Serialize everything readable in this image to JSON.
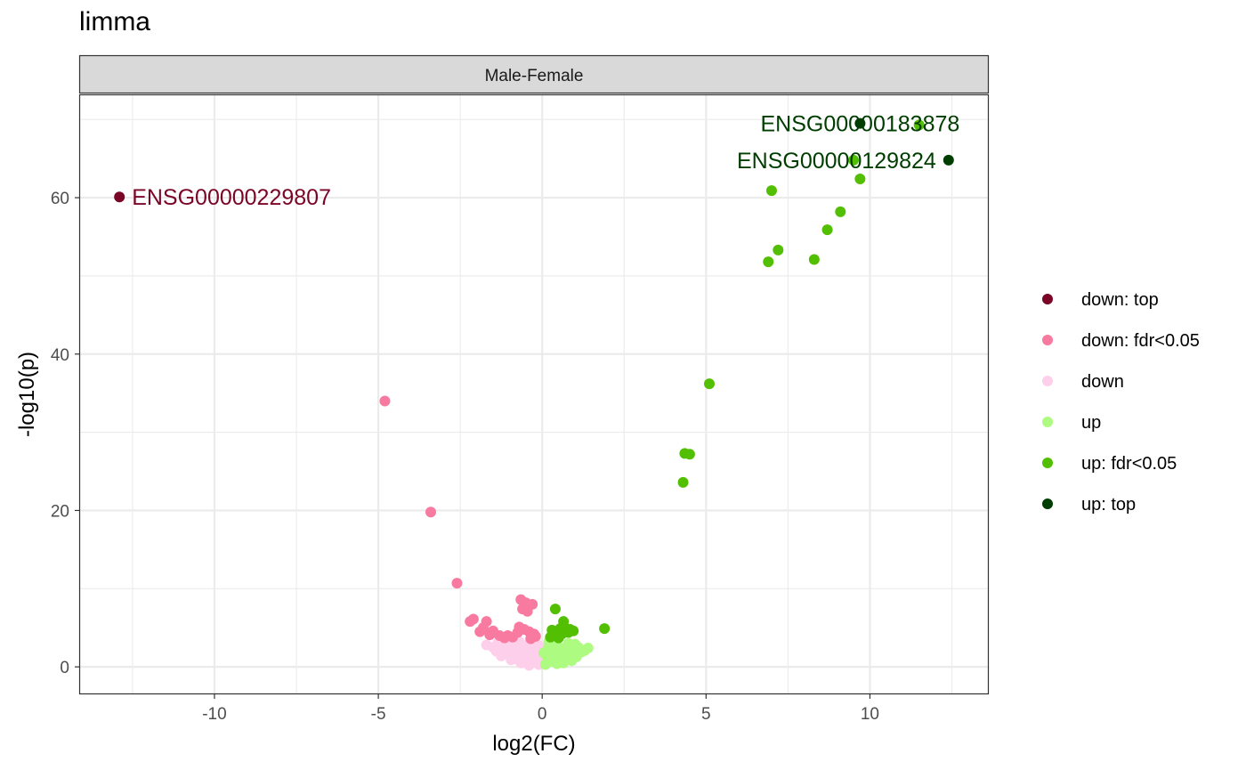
{
  "title": "limma",
  "chart_data": {
    "type": "scatter",
    "facet": "Male-Female",
    "xlabel": "log2(FC)",
    "ylabel": "-log10(p)",
    "xlim": [
      -14.1,
      13.6
    ],
    "ylim": [
      -3.4,
      73.1
    ],
    "x_ticks": [
      -10,
      -5,
      0,
      5,
      10
    ],
    "y_ticks": [
      0,
      20,
      40,
      60
    ],
    "grid": true,
    "legend_position": "right",
    "legend": [
      {
        "key": "down_top",
        "label": "down: top",
        "color": "#7a0526"
      },
      {
        "key": "down_fdr",
        "label": "down: fdr<0.05",
        "color": "#f87aa0"
      },
      {
        "key": "down",
        "label": "down",
        "color": "#fdcfea"
      },
      {
        "key": "up",
        "label": "up",
        "color": "#adfb80"
      },
      {
        "key": "up_fdr",
        "label": "up: fdr<0.05",
        "color": "#53bf02"
      },
      {
        "key": "up_top",
        "label": "up: top",
        "color": "#003d00"
      }
    ],
    "series": [
      {
        "key": "down_top",
        "points": [
          [
            -12.9,
            60.1
          ]
        ]
      },
      {
        "key": "down_fdr",
        "points": [
          [
            -4.8,
            34.0
          ],
          [
            -3.4,
            19.8
          ],
          [
            -2.6,
            10.7
          ],
          [
            -0.65,
            8.6
          ],
          [
            -0.5,
            8.2
          ],
          [
            -0.3,
            8.0
          ],
          [
            -0.6,
            7.4
          ],
          [
            -0.45,
            7.1
          ],
          [
            -2.1,
            6.1
          ],
          [
            -2.2,
            5.8
          ],
          [
            -1.7,
            5.8
          ],
          [
            -1.8,
            5.0
          ],
          [
            -1.5,
            4.6
          ],
          [
            -1.9,
            4.5
          ],
          [
            -1.6,
            4.1
          ],
          [
            -1.3,
            4.0
          ],
          [
            -1.05,
            4.0
          ],
          [
            -0.7,
            5.1
          ],
          [
            -0.55,
            4.8
          ],
          [
            -0.4,
            4.5
          ],
          [
            -0.25,
            4.2
          ],
          [
            -0.9,
            3.8
          ],
          [
            -1.15,
            3.7
          ],
          [
            -0.35,
            3.6
          ],
          [
            -0.2,
            3.9
          ],
          [
            -0.75,
            4.4
          ]
        ]
      },
      {
        "key": "down",
        "points": [
          [
            -1.7,
            2.8
          ],
          [
            -1.5,
            2.5
          ],
          [
            -1.35,
            3.1
          ],
          [
            -1.2,
            2.3
          ],
          [
            -1.0,
            2.9
          ],
          [
            -0.85,
            2.2
          ],
          [
            -0.7,
            3.2
          ],
          [
            -0.55,
            2.4
          ],
          [
            -0.4,
            3.0
          ],
          [
            -0.25,
            2.1
          ],
          [
            -0.1,
            2.7
          ],
          [
            -1.1,
            1.8
          ],
          [
            -0.9,
            1.5
          ],
          [
            -0.6,
            1.7
          ],
          [
            -0.35,
            1.3
          ],
          [
            -0.15,
            1.6
          ],
          [
            -0.8,
            1.0
          ],
          [
            -0.5,
            0.8
          ],
          [
            -0.25,
            0.6
          ],
          [
            -0.1,
            0.3
          ],
          [
            -0.05,
            1.1
          ],
          [
            -0.4,
            0.2
          ],
          [
            -0.65,
            0.5
          ],
          [
            -0.2,
            2.2
          ],
          [
            -1.4,
            2.0
          ],
          [
            -1.25,
            1.4
          ],
          [
            -0.95,
            0.9
          ],
          [
            -0.45,
            2.6
          ],
          [
            -0.3,
            1.9
          ],
          [
            -0.75,
            2.6
          ]
        ]
      },
      {
        "key": "up",
        "points": [
          [
            0.1,
            0.3
          ],
          [
            0.15,
            1.2
          ],
          [
            0.25,
            0.7
          ],
          [
            0.3,
            2.0
          ],
          [
            0.4,
            1.5
          ],
          [
            0.5,
            0.9
          ],
          [
            0.55,
            2.4
          ],
          [
            0.6,
            1.8
          ],
          [
            0.7,
            1.1
          ],
          [
            0.75,
            2.6
          ],
          [
            0.85,
            1.6
          ],
          [
            0.95,
            2.2
          ],
          [
            1.05,
            1.3
          ],
          [
            1.1,
            2.5
          ],
          [
            1.2,
            1.9
          ],
          [
            1.3,
            2.1
          ],
          [
            1.4,
            2.4
          ],
          [
            0.2,
            2.6
          ],
          [
            0.35,
            3.0
          ],
          [
            0.45,
            0.4
          ],
          [
            0.65,
            0.5
          ],
          [
            0.8,
            3.0
          ],
          [
            1.0,
            2.9
          ],
          [
            0.05,
            1.8
          ],
          [
            0.2,
            3.2
          ],
          [
            0.9,
            0.8
          ]
        ]
      },
      {
        "key": "up_fdr",
        "points": [
          [
            11.5,
            69.3
          ],
          [
            9.5,
            64.8
          ],
          [
            9.7,
            62.4
          ],
          [
            7.0,
            60.9
          ],
          [
            9.1,
            58.2
          ],
          [
            8.7,
            55.9
          ],
          [
            7.2,
            53.3
          ],
          [
            8.3,
            52.1
          ],
          [
            6.9,
            51.8
          ],
          [
            5.1,
            36.2
          ],
          [
            4.35,
            27.3
          ],
          [
            4.5,
            27.2
          ],
          [
            4.3,
            23.6
          ],
          [
            1.9,
            4.9
          ],
          [
            0.4,
            7.4
          ],
          [
            0.65,
            5.8
          ],
          [
            0.3,
            4.7
          ],
          [
            0.45,
            4.5
          ],
          [
            0.55,
            4.9
          ],
          [
            0.7,
            5.0
          ],
          [
            0.8,
            4.4
          ],
          [
            0.95,
            4.6
          ],
          [
            0.35,
            4.1
          ],
          [
            0.6,
            4.2
          ],
          [
            0.85,
            4.8
          ],
          [
            0.25,
            3.8
          ],
          [
            0.5,
            3.7
          ]
        ]
      },
      {
        "key": "up_top",
        "points": [
          [
            9.7,
            69.5
          ],
          [
            12.4,
            64.8
          ]
        ]
      }
    ],
    "annotations": [
      {
        "text": "ENSG00000229807",
        "x": -12.9,
        "y": 60.1,
        "anchor": "start",
        "color": "#7a0526"
      },
      {
        "text": "ENSG00000183878",
        "x": 9.7,
        "y": 69.5,
        "anchor": "middle",
        "color": "#003d00"
      },
      {
        "text": "ENSG00000129824",
        "x": 12.4,
        "y": 64.8,
        "anchor": "end",
        "color": "#003d00"
      }
    ]
  }
}
